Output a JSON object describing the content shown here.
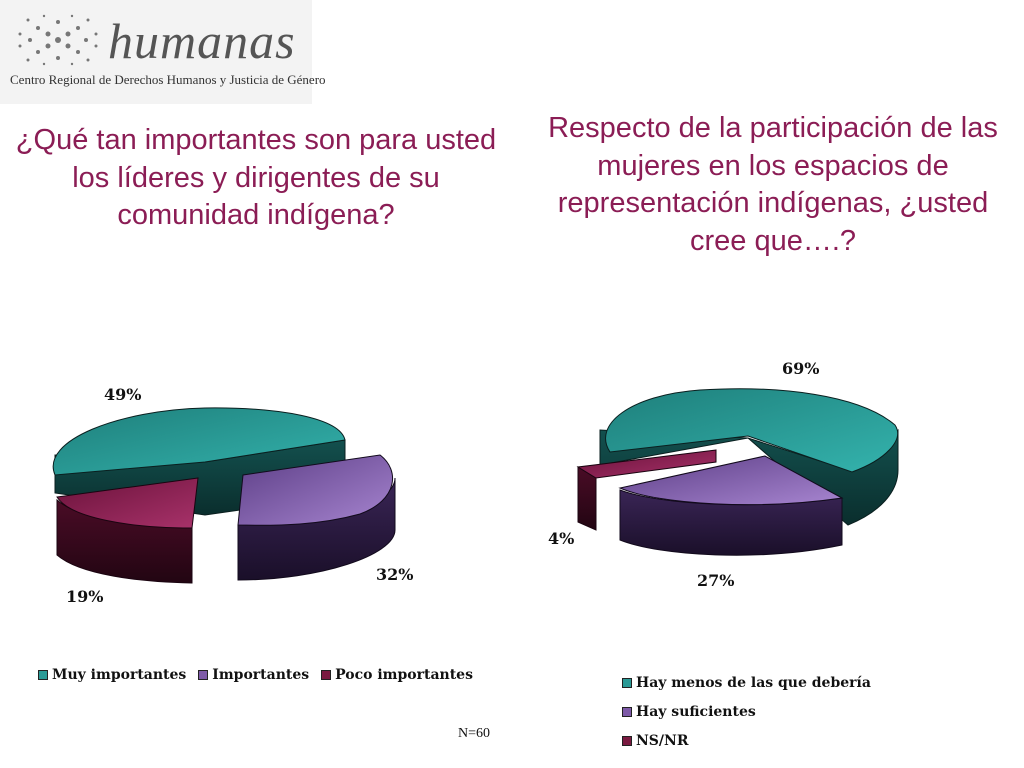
{
  "logo": {
    "name": "humanas",
    "subtitle": "Centro Regional de Derechos Humanos y Justicia de Género"
  },
  "footer": {
    "n_label": "N=60"
  },
  "colors": {
    "teal": "#2a9a96",
    "purple": "#7e5aa8",
    "maroon": "#7a1a40",
    "title": "#8b1d55"
  },
  "chart_data": [
    {
      "type": "pie",
      "title": "¿Qué tan importantes son para usted los líderes y dirigentes de su comunidad indígena?",
      "categories": [
        "Muy importantes",
        "Importantes",
        "Poco importantes"
      ],
      "values": [
        49,
        32,
        19
      ],
      "labels": [
        "49%",
        "32%",
        "19%"
      ],
      "legend": "bottom"
    },
    {
      "type": "pie",
      "title": "Respecto de la participación de las mujeres en los espacios de representación indígenas, ¿usted cree que….?",
      "categories": [
        "Hay menos de las que debería",
        "Hay suficientes",
        "NS/NR"
      ],
      "values": [
        69,
        27,
        4
      ],
      "labels": [
        "69%",
        "27%",
        "4%"
      ],
      "legend": "bottom"
    }
  ]
}
